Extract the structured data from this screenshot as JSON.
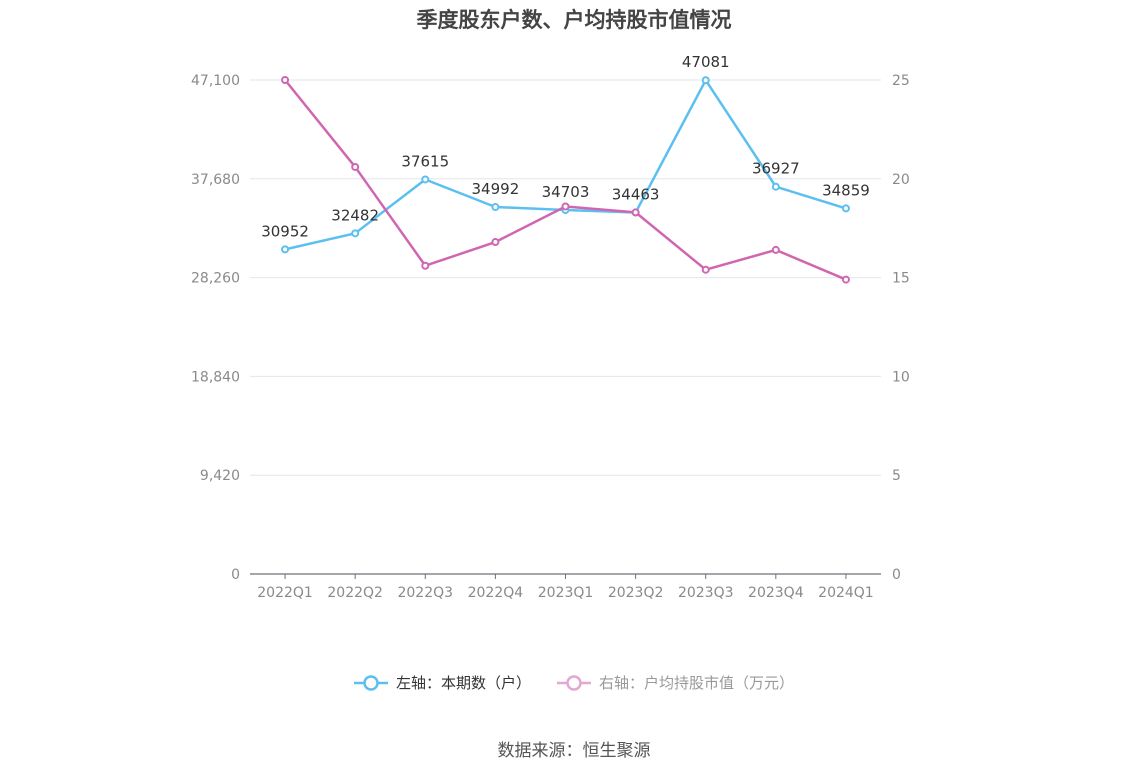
{
  "chart_data": {
    "type": "line",
    "title": "季度股东户数、户均持股市值情况",
    "categories": [
      "2022Q1",
      "2022Q2",
      "2022Q3",
      "2022Q4",
      "2023Q1",
      "2023Q2",
      "2023Q3",
      "2023Q4",
      "2024Q1"
    ],
    "left_axis": {
      "min": 0,
      "max": 47100,
      "ticks": [
        0,
        9420,
        18840,
        28260,
        37680,
        47100
      ],
      "tick_labels": [
        "0",
        "9,420",
        "18,840",
        "28,260",
        "37,680",
        "47,100"
      ]
    },
    "right_axis": {
      "min": 0,
      "max": 25,
      "ticks": [
        0,
        5,
        10,
        15,
        20,
        25
      ],
      "tick_labels": [
        "0",
        "5",
        "10",
        "15",
        "20",
        "25"
      ]
    },
    "grid": true,
    "legend_position": "bottom",
    "series": [
      {
        "name": "左轴：本期数（户）",
        "axis": "left",
        "color": "#5bc0f0",
        "values": [
          30952,
          32482,
          37615,
          34992,
          34703,
          34463,
          47081,
          36927,
          34859
        ],
        "labels": [
          "30952",
          "32482",
          "37615",
          "34992",
          "34703",
          "34463",
          "47081",
          "36927",
          "34859"
        ]
      },
      {
        "name": "右轴：户均持股市值（万元）",
        "axis": "right",
        "color": "#d066b0",
        "values": [
          25.0,
          20.6,
          15.6,
          16.8,
          18.6,
          18.3,
          15.4,
          16.4,
          14.9
        ]
      }
    ]
  },
  "source_text": "数据来源：恒生聚源"
}
